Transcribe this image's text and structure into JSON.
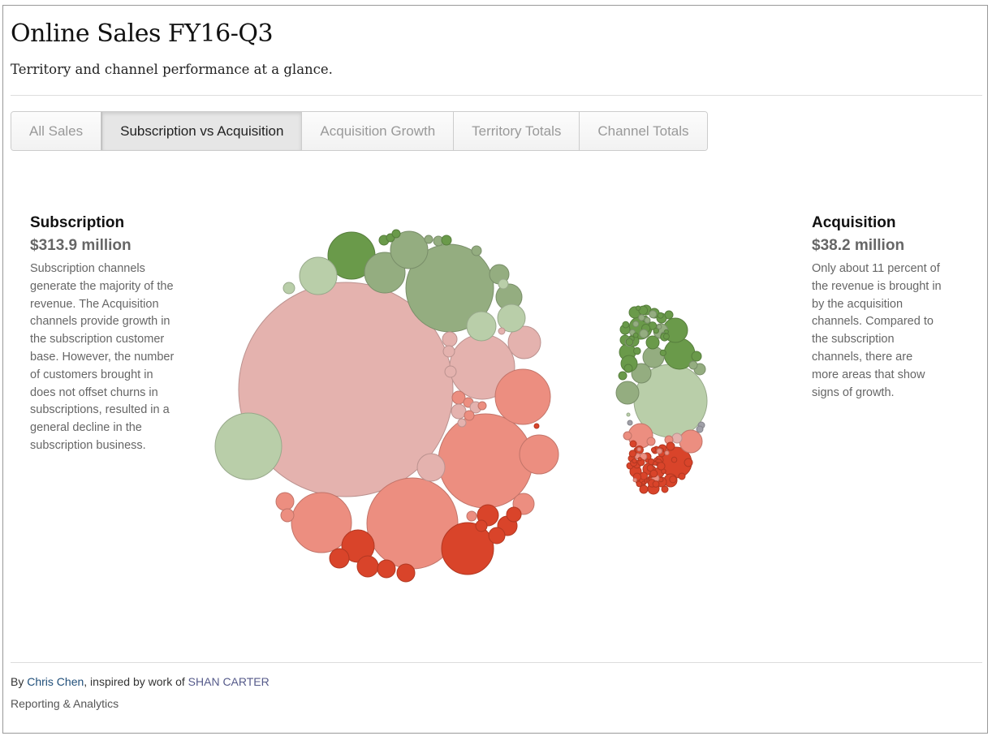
{
  "header": {
    "title": "Online Sales FY16-Q3",
    "subtitle": "Territory and channel performance at a glance."
  },
  "tabs": [
    {
      "label": "All Sales",
      "active": false
    },
    {
      "label": "Subscription vs Acquisition",
      "active": true
    },
    {
      "label": "Acquisition Growth",
      "active": false
    },
    {
      "label": "Territory Totals",
      "active": false
    },
    {
      "label": "Channel Totals",
      "active": false
    }
  ],
  "left_panel": {
    "heading": "Subscription",
    "amount": "$313.9 million",
    "text": "Subscription channels generate the majority of the revenue. The Acquisition channels provide growth in the subscription customer base. However, the number of customers brought in does not offset churns in subscriptions, resulted in a general decline in the subscription business."
  },
  "right_panel": {
    "heading": "Acquisition",
    "amount": "$38.2 million",
    "text": "Only about 11 percent of the revenue is brought in by the acquisition channels. Compared to the subscription channels, there are more areas that show signs of growth."
  },
  "footer": {
    "by": "By",
    "author": "Chris Chen",
    "inspired": ", inspired by work of",
    "inspired_author": "SHAN CARTER",
    "org": "Reporting & Analytics"
  },
  "chart_data": {
    "type": "bubble-cluster",
    "groups": [
      {
        "name": "Subscription",
        "total": "$313.9 million"
      },
      {
        "name": "Acquisition",
        "total": "$38.2 million"
      }
    ],
    "colors": {
      "strong_growth": "#6a9a4a",
      "growth": "#94ad80",
      "slight_growth": "#b9cea9",
      "slight_decline": "#e4b2ae",
      "decline": "#ec8e80",
      "strong_decline": "#d9442a",
      "neutral": "#a0a0a8"
    }
  }
}
